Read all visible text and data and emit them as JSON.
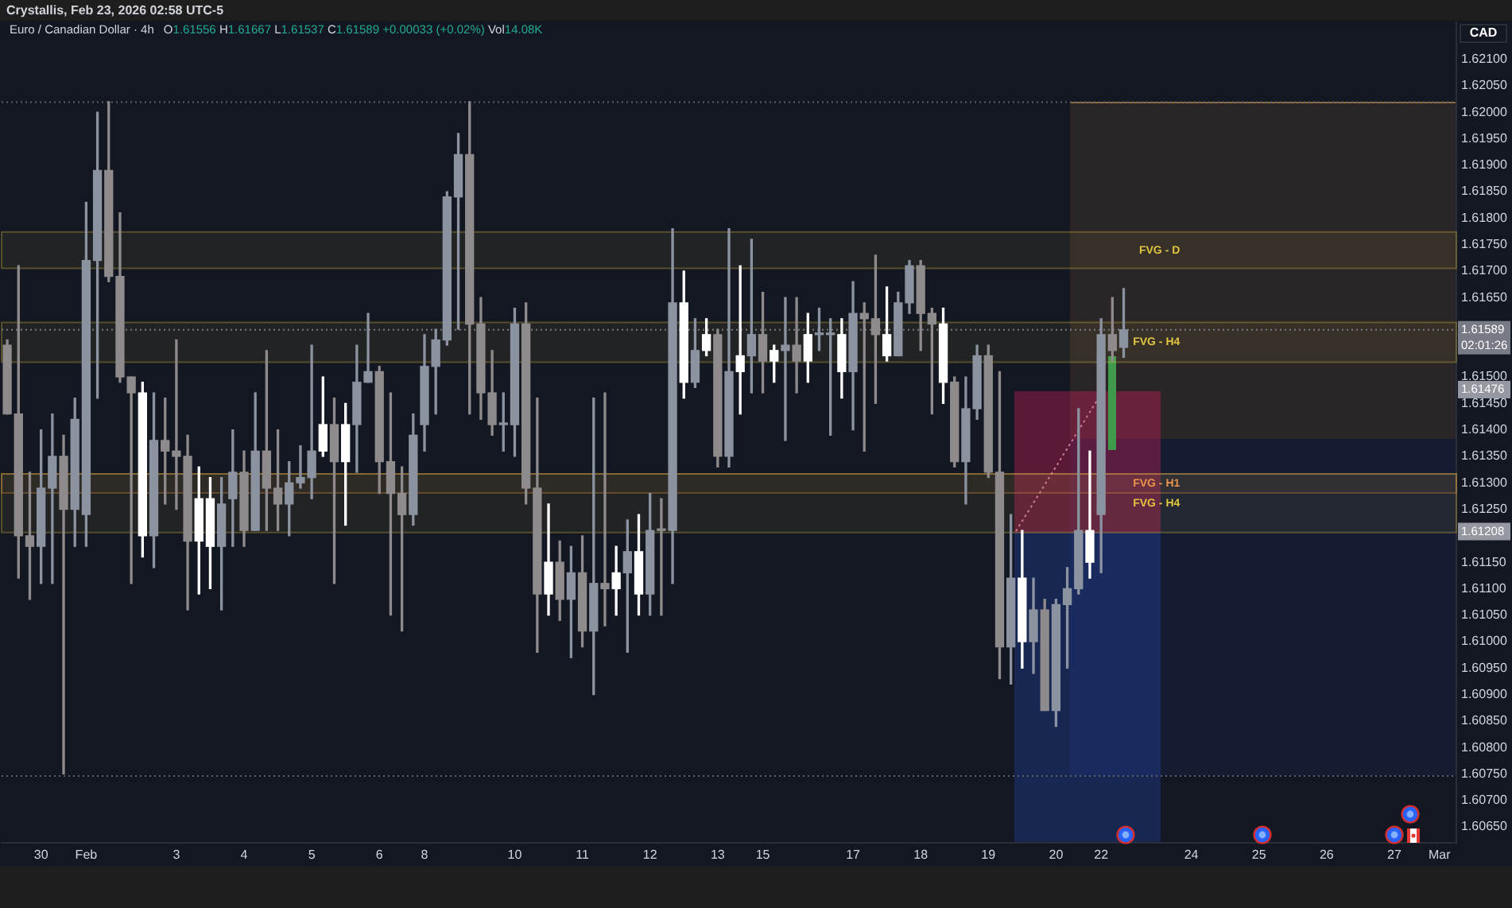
{
  "chart_data": {
    "type": "candlestick",
    "title": "Euro / Canadian Dollar · 4h",
    "subtitle": "O1.61556 H1.61667 L1.61537 C1.61589 +0.00033 (+0.02%) Vol14.08K",
    "ylabel": "CAD",
    "annotations": [
      "Crystallis, Feb 23, 2026 02:58 UTC-5",
      {
        "text": "1.61476",
        "y": 1.61476
      },
      {
        "text": "1.61208",
        "y": 1.61208
      }
    ],
    "categories": [
      null,
      null,
      null,
      "30",
      null,
      null,
      null,
      "Feb",
      null,
      null,
      null,
      null,
      null,
      null,
      null,
      "3",
      null,
      null,
      null,
      null,
      null,
      "4",
      null,
      null,
      null,
      null,
      null,
      "5",
      null,
      null,
      null,
      null,
      null,
      "6",
      null,
      null,
      null,
      "8",
      null,
      null,
      null,
      null,
      null,
      null,
      null,
      "10",
      null,
      null,
      null,
      null,
      null,
      "11",
      null,
      null,
      null,
      null,
      null,
      "12",
      null,
      null,
      null,
      null,
      null,
      "13",
      null,
      null,
      null,
      "15",
      null,
      null,
      null,
      null,
      null,
      null,
      null,
      "17",
      null,
      null,
      null,
      null,
      null,
      "18",
      null,
      null,
      null,
      null,
      null,
      "19",
      null,
      null,
      null,
      null,
      null,
      "20",
      null,
      null,
      null,
      "22",
      null,
      null,
      null,
      null,
      null,
      null,
      null,
      "24",
      null,
      null,
      null,
      null,
      null,
      "25",
      null,
      null,
      null,
      null,
      null,
      "26",
      null,
      null,
      null,
      null,
      null,
      "27",
      null,
      null,
      null,
      "Mar",
      null
    ],
    "ohlc": [
      [
        1.6156,
        1.6157,
        1.6143,
        1.6143
      ],
      [
        1.6143,
        1.6171,
        1.6112,
        1.612
      ],
      [
        1.612,
        1.6132,
        1.6108,
        1.6118
      ],
      [
        1.6118,
        1.614,
        1.6111,
        1.6129
      ],
      [
        1.6129,
        1.6143,
        1.6111,
        1.6135
      ],
      [
        1.6135,
        1.6139,
        1.6075,
        1.6125
      ],
      [
        1.6125,
        1.6146,
        1.6118,
        1.6142
      ],
      [
        1.6124,
        1.6183,
        1.6118,
        1.6172
      ],
      [
        1.6172,
        1.62,
        1.6146,
        1.6189
      ],
      [
        1.6189,
        1.6202,
        1.6168,
        1.6169
      ],
      [
        1.6169,
        1.6181,
        1.6149,
        1.615
      ],
      [
        1.615,
        1.615,
        1.6111,
        1.6147
      ],
      [
        1.6147,
        1.6149,
        1.6116,
        1.612
      ],
      [
        1.612,
        1.6147,
        1.6114,
        1.6138
      ],
      [
        1.6138,
        1.6146,
        1.6126,
        1.6136
      ],
      [
        1.6136,
        1.6157,
        1.6125,
        1.6135
      ],
      [
        1.6135,
        1.6139,
        1.6106,
        1.6119
      ],
      [
        1.6119,
        1.6133,
        1.6109,
        1.6127
      ],
      [
        1.6127,
        1.6131,
        1.611,
        1.6118
      ],
      [
        1.6118,
        1.6131,
        1.6106,
        1.6126
      ],
      [
        1.6127,
        1.614,
        1.6118,
        1.6132
      ],
      [
        1.6132,
        1.6136,
        1.6118,
        1.6121
      ],
      [
        1.6121,
        1.6147,
        1.6121,
        1.6136
      ],
      [
        1.6136,
        1.6155,
        1.6121,
        1.6129
      ],
      [
        1.6129,
        1.614,
        1.6121,
        1.6126
      ],
      [
        1.6126,
        1.6134,
        1.612,
        1.613
      ],
      [
        1.613,
        1.6137,
        1.6129,
        1.6131
      ],
      [
        1.6131,
        1.6156,
        1.6127,
        1.6136
      ],
      [
        1.6136,
        1.615,
        1.6135,
        1.6141
      ],
      [
        1.6141,
        1.6146,
        1.6111,
        1.6134
      ],
      [
        1.6134,
        1.6145,
        1.6122,
        1.6141
      ],
      [
        1.6141,
        1.6156,
        1.6132,
        1.6149
      ],
      [
        1.6149,
        1.6162,
        1.6149,
        1.6151
      ],
      [
        1.6151,
        1.6152,
        1.6128,
        1.6134
      ],
      [
        1.6134,
        1.6147,
        1.6105,
        1.6128
      ],
      [
        1.6128,
        1.6133,
        1.6102,
        1.6124
      ],
      [
        1.6124,
        1.6143,
        1.6122,
        1.6139
      ],
      [
        1.6141,
        1.6158,
        1.6136,
        1.6152
      ],
      [
        1.6152,
        1.6159,
        1.6143,
        1.6157
      ],
      [
        1.6157,
        1.6185,
        1.6156,
        1.6184
      ],
      [
        1.6184,
        1.6196,
        1.6159,
        1.6192
      ],
      [
        1.6192,
        1.6202,
        1.6143,
        1.616
      ],
      [
        1.616,
        1.6165,
        1.6142,
        1.6147
      ],
      [
        1.6147,
        1.6155,
        1.6139,
        1.6141
      ],
      [
        1.6141,
        1.6147,
        1.6136,
        1.6141
      ],
      [
        1.6141,
        1.6163,
        1.6135,
        1.616
      ],
      [
        1.616,
        1.6164,
        1.6126,
        1.6129
      ],
      [
        1.6129,
        1.6146,
        1.6098,
        1.6109
      ],
      [
        1.6109,
        1.6126,
        1.6105,
        1.6115
      ],
      [
        1.6115,
        1.6119,
        1.6104,
        1.6108
      ],
      [
        1.6108,
        1.6118,
        1.6097,
        1.6113
      ],
      [
        1.6113,
        1.612,
        1.6099,
        1.6102
      ],
      [
        1.6102,
        1.6146,
        1.609,
        1.6111
      ],
      [
        1.6111,
        1.6147,
        1.6103,
        1.611
      ],
      [
        1.611,
        1.6118,
        1.6105,
        1.6113
      ],
      [
        1.6113,
        1.6123,
        1.6098,
        1.6117
      ],
      [
        1.6117,
        1.6124,
        1.6105,
        1.6109
      ],
      [
        1.6109,
        1.6128,
        1.6105,
        1.6121
      ],
      [
        1.6121,
        1.6127,
        1.6105,
        1.6121
      ],
      [
        1.6121,
        1.6178,
        1.6111,
        1.6164
      ],
      [
        1.6164,
        1.617,
        1.6146,
        1.6149
      ],
      [
        1.6149,
        1.6161,
        1.6148,
        1.6155
      ],
      [
        1.6155,
        1.6161,
        1.6154,
        1.6158
      ],
      [
        1.6158,
        1.6159,
        1.6133,
        1.6135
      ],
      [
        1.6135,
        1.6178,
        1.6133,
        1.6151
      ],
      [
        1.6151,
        1.6171,
        1.6143,
        1.6154
      ],
      [
        1.6154,
        1.6176,
        1.6147,
        1.6158
      ],
      [
        1.6158,
        1.6166,
        1.6147,
        1.6153
      ],
      [
        1.6153,
        1.6156,
        1.6149,
        1.6155
      ],
      [
        1.6155,
        1.6165,
        1.6138,
        1.6156
      ],
      [
        1.6156,
        1.6165,
        1.6147,
        1.6153
      ],
      [
        1.6153,
        1.6162,
        1.6149,
        1.6158
      ],
      [
        1.6158,
        1.6163,
        1.6155,
        1.6158
      ],
      [
        1.6158,
        1.6161,
        1.6139,
        1.6158
      ],
      [
        1.6158,
        1.6161,
        1.6146,
        1.6151
      ],
      [
        1.6151,
        1.6168,
        1.614,
        1.6162
      ],
      [
        1.6162,
        1.6164,
        1.6136,
        1.6161
      ],
      [
        1.6161,
        1.6173,
        1.6145,
        1.6158
      ],
      [
        1.6158,
        1.6167,
        1.6153,
        1.6154
      ],
      [
        1.6154,
        1.6166,
        1.6154,
        1.6164
      ],
      [
        1.6164,
        1.6172,
        1.6162,
        1.6171
      ],
      [
        1.6171,
        1.6172,
        1.6155,
        1.6162
      ],
      [
        1.6162,
        1.6163,
        1.6143,
        1.616
      ],
      [
        1.616,
        1.6163,
        1.6145,
        1.6149
      ],
      [
        1.6149,
        1.615,
        1.6133,
        1.6134
      ],
      [
        1.6134,
        1.615,
        1.6126,
        1.6144
      ],
      [
        1.6144,
        1.6156,
        1.6142,
        1.6154
      ],
      [
        1.6154,
        1.6156,
        1.6131,
        1.6132
      ],
      [
        1.6132,
        1.6151,
        1.6093,
        1.6099
      ],
      [
        1.6099,
        1.6124,
        1.6092,
        1.6112
      ],
      [
        1.6112,
        1.6121,
        1.6095,
        1.61
      ],
      [
        1.61,
        1.6112,
        1.6094,
        1.6106
      ],
      [
        1.6106,
        1.6108,
        1.6087,
        1.6087
      ],
      [
        1.6087,
        1.6108,
        1.6084,
        1.6107
      ],
      [
        1.6107,
        1.6114,
        1.6095,
        1.611
      ],
      [
        1.611,
        1.6144,
        1.6109,
        1.6121
      ],
      [
        1.6121,
        1.6136,
        1.6112,
        1.6115
      ],
      [
        1.6124,
        1.6161,
        1.6113,
        1.6158
      ],
      [
        1.6158,
        1.6165,
        1.6153,
        1.6155
      ],
      [
        1.61556,
        1.61667,
        1.61537,
        1.61589
      ],
      null,
      null,
      null,
      null,
      null,
      null,
      null,
      null,
      null,
      null,
      null,
      null,
      null,
      null,
      null,
      null,
      null,
      null,
      null,
      null,
      null,
      null,
      null,
      null,
      null,
      null,
      null,
      null,
      null
    ],
    "colors": [
      "#8f8a8b",
      "#8f8a8b",
      "#8f8a8b",
      "#8c93a0",
      "#8c93a0",
      "#8f8a8b",
      "#8c93a0",
      "#8c93a0",
      "#8c93a0",
      "#8f8a8b",
      "#8f8a8b",
      "#8f8a8b",
      "#ffffff",
      "#8c93a0",
      "#8f8a8b",
      "#8f8a8b",
      "#8f8a8b",
      "#ffffff",
      "#ffffff",
      "#8c93a0",
      "#8c93a0",
      "#8f8a8b",
      "#8c93a0",
      "#8f8a8b",
      "#8f8a8b",
      "#8c93a0",
      "#8c93a0",
      "#8c93a0",
      "#ffffff",
      "#8f8a8b",
      "#ffffff",
      "#8c93a0",
      "#8c93a0",
      "#8f8a8b",
      "#8f8a8b",
      "#8f8a8b",
      "#8c93a0",
      "#8c93a0",
      "#8c93a0",
      "#8c93a0",
      "#8c93a0",
      "#8f8a8b",
      "#8f8a8b",
      "#8f8a8b",
      "#8c93a0",
      "#8c93a0",
      "#8f8a8b",
      "#8f8a8b",
      "#ffffff",
      "#8f8a8b",
      "#8c93a0",
      "#8f8a8b",
      "#8c93a0",
      "#8f8a8b",
      "#ffffff",
      "#8c93a0",
      "#ffffff",
      "#8c93a0",
      "#8f8a8b",
      "#8c93a0",
      "#ffffff",
      "#8c93a0",
      "#ffffff",
      "#8f8a8b",
      "#8c93a0",
      "#ffffff",
      "#8c93a0",
      "#8f8a8b",
      "#ffffff",
      "#8c93a0",
      "#8f8a8b",
      "#ffffff",
      "#8c93a0",
      "#8c93a0",
      "#ffffff",
      "#8c93a0",
      "#8f8a8b",
      "#8f8a8b",
      "#ffffff",
      "#8c93a0",
      "#8c93a0",
      "#8f8a8b",
      "#8f8a8b",
      "#ffffff",
      "#8f8a8b",
      "#8c93a0",
      "#8c93a0",
      "#8f8a8b",
      "#8f8a8b",
      "#8c93a0",
      "#ffffff",
      "#8c93a0",
      "#8f8a8b",
      "#8c93a0",
      "#8c93a0",
      "#8c93a0",
      "#ffffff",
      "#8c93a0",
      "#8f8a8b",
      "#8c93a0",
      null,
      null,
      null,
      null,
      null,
      null,
      null,
      null,
      null,
      null,
      null,
      null,
      null,
      null,
      null,
      null,
      null,
      null,
      null,
      null,
      null,
      null,
      null,
      null,
      null,
      null,
      null,
      null,
      null
    ],
    "ylim": [
      1.6062,
      1.6217
    ],
    "yticks": [
      {
        "value": 1.6065,
        "label": "1.60650"
      },
      {
        "value": 1.607,
        "label": "1.60700"
      },
      {
        "value": 1.6075,
        "label": "1.60750"
      },
      {
        "value": 1.608,
        "label": "1.60800"
      },
      {
        "value": 1.6085,
        "label": "1.60850"
      },
      {
        "value": 1.609,
        "label": "1.60900"
      },
      {
        "value": 1.6095,
        "label": "1.60950"
      },
      {
        "value": 1.61,
        "label": "1.61000"
      },
      {
        "value": 1.6105,
        "label": "1.61050"
      },
      {
        "value": 1.611,
        "label": "1.61100"
      },
      {
        "value": 1.6115,
        "label": "1.61150"
      },
      {
        "value": 1.6125,
        "label": "1.61250"
      },
      {
        "value": 1.613,
        "label": "1.61300"
      },
      {
        "value": 1.6135,
        "label": "1.61350"
      },
      {
        "value": 1.614,
        "label": "1.61400"
      },
      {
        "value": 1.6145,
        "label": "1.61450"
      },
      {
        "value": 1.615,
        "label": "1.61500"
      },
      {
        "value": 1.6165,
        "label": "1.61650"
      },
      {
        "value": 1.617,
        "label": "1.61700"
      },
      {
        "value": 1.6175,
        "label": "1.61750"
      },
      {
        "value": 1.618,
        "label": "1.61800"
      },
      {
        "value": 1.6185,
        "label": "1.61850"
      },
      {
        "value": 1.619,
        "label": "1.61900"
      },
      {
        "value": 1.6195,
        "label": "1.61950"
      },
      {
        "value": 1.62,
        "label": "1.62000"
      },
      {
        "value": 1.6205,
        "label": "1.62050"
      },
      {
        "value": 1.621,
        "label": "1.62100"
      }
    ],
    "ref_lines": [
      {
        "axis": "y",
        "value": 1.62019,
        "color": "#5d606b",
        "line_style": "dotted"
      },
      {
        "axis": "y",
        "value": 1.60746,
        "color": "#5d606b",
        "line_style": "dotted"
      },
      {
        "axis": "y",
        "value": 1.61589,
        "label": "1.61589\n02:01:26",
        "color": "#787b86",
        "line_style": "dotted"
      }
    ],
    "bands": [
      {
        "axis": "y",
        "from": 1.61705,
        "to": 1.61774,
        "label": "FVG - D",
        "color": "#e0c341"
      },
      {
        "axis": "y",
        "from": 1.61528,
        "to": 1.61603,
        "label": "FVG - H4",
        "color": "#e0c341"
      },
      {
        "axis": "y",
        "from": 1.61281,
        "to": 1.61317,
        "label": "FVG - H1",
        "color": "#e8924a"
      },
      {
        "axis": "y",
        "from": 1.61206,
        "to": 1.61317,
        "label": "FVG - H4",
        "color": "#e0c341"
      }
    ]
  }
}
